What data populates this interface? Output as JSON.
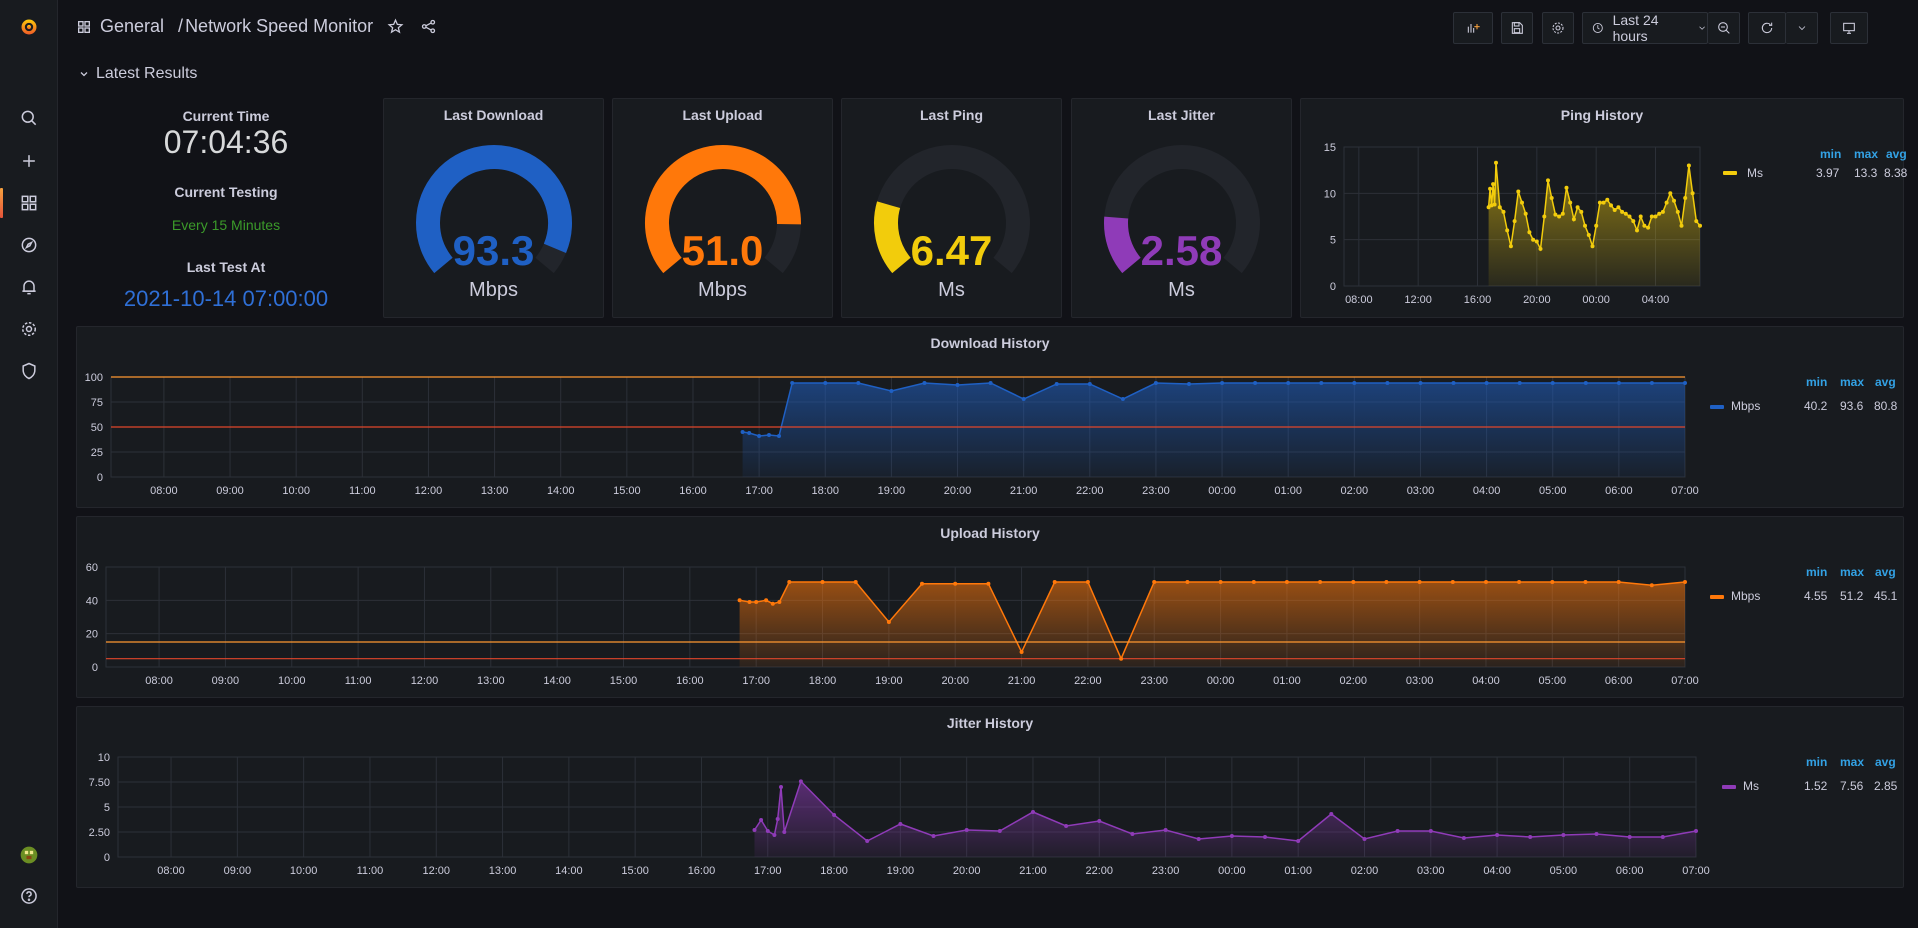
{
  "header": {
    "folder": "General",
    "separator": "/",
    "title": "Network Speed Monitor",
    "time_range": "Last 24 hours"
  },
  "row": {
    "title": "Latest Results"
  },
  "info": {
    "current_time_label": "Current Time",
    "current_time": "07:04:36",
    "current_testing_label": "Current Testing",
    "current_testing": "Every 15 Minutes",
    "last_test_label": "Last Test At",
    "last_test": "2021-10-14 07:00:00"
  },
  "gauges": [
    {
      "title": "Last Download",
      "value": "93.3",
      "value_num": 93.3,
      "max": 100,
      "unit": "Mbps",
      "color": "#1f60c4"
    },
    {
      "title": "Last Upload",
      "value": "51.0",
      "value_num": 51.0,
      "max": 60,
      "unit": "Mbps",
      "color": "#ff780a"
    },
    {
      "title": "Last Ping",
      "value": "6.47",
      "value_num": 6.47,
      "max": 30,
      "unit": "Ms",
      "color": "#f2cc0c"
    },
    {
      "title": "Last Jitter",
      "value": "2.58",
      "value_num": 2.58,
      "max": 15,
      "unit": "Ms",
      "color": "#8f3bb8"
    }
  ],
  "legend_headers": {
    "min": "min",
    "max": "max",
    "avg": "avg"
  },
  "chart_data": [
    {
      "type": "line",
      "title": "Ping History",
      "color": "#f2cc0c",
      "ylim": [
        0,
        15
      ],
      "yticks": [
        "15",
        "10",
        "5",
        "0"
      ],
      "yticks_num": [
        15,
        10,
        5,
        0
      ],
      "xlim": [
        7,
        31
      ],
      "xticks": [
        "08:00",
        "12:00",
        "16:00",
        "20:00",
        "00:00",
        "04:00"
      ],
      "xticks_num": [
        8,
        12,
        16,
        20,
        24,
        28
      ],
      "series": [
        {
          "name": "Ms",
          "min": "3.97",
          "max": "13.3",
          "avg": "8.38",
          "x": [
            16.75,
            16.85,
            16.95,
            17.05,
            17.15,
            17.25,
            17.5,
            17.75,
            18.0,
            18.25,
            18.5,
            18.75,
            19.0,
            19.25,
            19.5,
            19.75,
            20.0,
            20.25,
            20.5,
            20.75,
            21.0,
            21.25,
            21.5,
            21.75,
            22.0,
            22.25,
            22.5,
            22.75,
            23.0,
            23.25,
            23.5,
            23.75,
            24.0,
            24.25,
            24.5,
            24.75,
            25.0,
            25.25,
            25.5,
            25.75,
            26.0,
            26.25,
            26.5,
            26.75,
            27.0,
            27.25,
            27.5,
            27.75,
            28.0,
            28.25,
            28.5,
            28.75,
            29.0,
            29.25,
            29.5,
            29.75,
            30.0,
            30.25,
            30.5,
            30.75,
            31.0
          ],
          "values": [
            8.5,
            10.5,
            8.7,
            11.0,
            8.8,
            13.3,
            8.5,
            8.0,
            6.0,
            4.3,
            7.0,
            10.2,
            9.0,
            7.8,
            5.8,
            5.0,
            4.8,
            4.0,
            7.5,
            11.4,
            9.5,
            7.7,
            7.5,
            7.8,
            10.6,
            9.0,
            7.2,
            8.5,
            8.0,
            6.5,
            5.5,
            4.3,
            6.5,
            9.0,
            9.0,
            9.3,
            8.7,
            8.2,
            8.5,
            8.0,
            7.8,
            7.5,
            7.0,
            6.0,
            7.5,
            6.5,
            6.3,
            7.5,
            7.5,
            7.8,
            8.0,
            9.0,
            10.0,
            9.2,
            8.0,
            6.5,
            9.5,
            13.0,
            10.0,
            7.0,
            6.5
          ]
        }
      ]
    },
    {
      "type": "area",
      "title": "Download History",
      "color": "#1f60c4",
      "ylim": [
        0,
        100
      ],
      "yticks": [
        "100",
        "75",
        "50",
        "25",
        "0"
      ],
      "yticks_num": [
        100,
        75,
        50,
        25,
        0
      ],
      "xlim": [
        7.2,
        31.0
      ],
      "xticks": [
        "08:00",
        "09:00",
        "10:00",
        "11:00",
        "12:00",
        "13:00",
        "14:00",
        "15:00",
        "16:00",
        "17:00",
        "18:00",
        "19:00",
        "20:00",
        "21:00",
        "22:00",
        "23:00",
        "00:00",
        "01:00",
        "02:00",
        "03:00",
        "04:00",
        "05:00",
        "06:00",
        "07:00"
      ],
      "xticks_num": [
        8,
        9,
        10,
        11,
        12,
        13,
        14,
        15,
        16,
        17,
        18,
        19,
        20,
        21,
        22,
        23,
        24,
        25,
        26,
        27,
        28,
        29,
        30,
        31
      ],
      "thresholds": [
        {
          "value": 100,
          "color": "#ff9830"
        },
        {
          "value": 50,
          "color": "#e0462b"
        }
      ],
      "series": [
        {
          "name": "Mbps",
          "min": "40.2",
          "max": "93.6",
          "avg": "80.8",
          "x": [
            16.75,
            16.85,
            17.0,
            17.15,
            17.3,
            17.5,
            18.0,
            18.5,
            19.0,
            19.5,
            20.0,
            20.5,
            21.0,
            21.5,
            22.0,
            22.5,
            23.0,
            23.5,
            24.0,
            24.5,
            25.0,
            25.5,
            26.0,
            26.5,
            27.0,
            27.5,
            28.0,
            28.5,
            29.0,
            29.5,
            30.0,
            30.5,
            31.0
          ],
          "values": [
            45,
            44,
            41,
            42,
            41,
            94,
            94,
            94,
            86,
            94,
            92,
            94,
            78,
            93,
            93,
            78,
            94,
            93,
            94,
            94,
            94,
            94,
            94,
            94,
            94,
            94,
            94,
            94,
            94,
            94,
            94,
            94,
            94
          ]
        }
      ]
    },
    {
      "type": "area",
      "title": "Upload History",
      "color": "#ff780a",
      "ylim": [
        0,
        60
      ],
      "yticks": [
        "60",
        "40",
        "20",
        "0"
      ],
      "yticks_num": [
        60,
        40,
        20,
        0
      ],
      "xlim": [
        7.2,
        31.0
      ],
      "xticks": [
        "08:00",
        "09:00",
        "10:00",
        "11:00",
        "12:00",
        "13:00",
        "14:00",
        "15:00",
        "16:00",
        "17:00",
        "18:00",
        "19:00",
        "20:00",
        "21:00",
        "22:00",
        "23:00",
        "00:00",
        "01:00",
        "02:00",
        "03:00",
        "04:00",
        "05:00",
        "06:00",
        "07:00"
      ],
      "xticks_num": [
        8,
        9,
        10,
        11,
        12,
        13,
        14,
        15,
        16,
        17,
        18,
        19,
        20,
        21,
        22,
        23,
        24,
        25,
        26,
        27,
        28,
        29,
        30,
        31
      ],
      "thresholds": [
        {
          "value": 15,
          "color": "#ff9830"
        },
        {
          "value": 5,
          "color": "#e0462b"
        }
      ],
      "series": [
        {
          "name": "Mbps",
          "min": "4.55",
          "max": "51.2",
          "avg": "45.1",
          "x": [
            16.75,
            16.9,
            17.0,
            17.15,
            17.25,
            17.35,
            17.5,
            18.0,
            18.5,
            19.0,
            19.5,
            20.0,
            20.5,
            21.0,
            21.5,
            22.0,
            22.5,
            23.0,
            23.5,
            24.0,
            24.5,
            25.0,
            25.5,
            26.0,
            26.5,
            27.0,
            27.5,
            28.0,
            28.5,
            29.0,
            29.5,
            30.0,
            30.5,
            31.0
          ],
          "values": [
            40,
            39,
            39,
            40,
            38,
            39,
            51,
            51,
            51,
            27,
            50,
            50,
            50,
            9,
            51,
            51,
            5,
            51,
            51,
            51,
            51,
            51,
            51,
            51,
            51,
            51,
            51,
            51,
            51,
            51,
            51,
            51,
            49,
            51
          ]
        }
      ]
    },
    {
      "type": "area",
      "title": "Jitter History",
      "color": "#8f3bb8",
      "ylim": [
        0,
        10
      ],
      "yticks": [
        "10",
        "7.50",
        "5",
        "2.50",
        "0"
      ],
      "yticks_num": [
        10,
        7.5,
        5,
        2.5,
        0
      ],
      "xlim": [
        7.2,
        31.0
      ],
      "xticks": [
        "08:00",
        "09:00",
        "10:00",
        "11:00",
        "12:00",
        "13:00",
        "14:00",
        "15:00",
        "16:00",
        "17:00",
        "18:00",
        "19:00",
        "20:00",
        "21:00",
        "22:00",
        "23:00",
        "00:00",
        "01:00",
        "02:00",
        "03:00",
        "04:00",
        "05:00",
        "06:00",
        "07:00"
      ],
      "xticks_num": [
        8,
        9,
        10,
        11,
        12,
        13,
        14,
        15,
        16,
        17,
        18,
        19,
        20,
        21,
        22,
        23,
        24,
        25,
        26,
        27,
        28,
        29,
        30,
        31
      ],
      "series": [
        {
          "name": "Ms",
          "min": "1.52",
          "max": "7.56",
          "avg": "2.85",
          "x": [
            16.8,
            16.9,
            17.0,
            17.1,
            17.15,
            17.2,
            17.25,
            17.5,
            18.0,
            18.5,
            19.0,
            19.5,
            20.0,
            20.5,
            21.0,
            21.5,
            22.0,
            22.5,
            23.0,
            23.5,
            24.0,
            24.5,
            25.0,
            25.5,
            26.0,
            26.5,
            27.0,
            27.5,
            28.0,
            28.5,
            29.0,
            29.5,
            30.0,
            30.5,
            31.0
          ],
          "values": [
            2.7,
            3.7,
            2.6,
            2.2,
            3.8,
            7.0,
            2.5,
            7.56,
            4.2,
            1.6,
            3.3,
            2.1,
            2.7,
            2.6,
            4.5,
            3.1,
            3.6,
            2.3,
            2.7,
            1.8,
            2.1,
            2.0,
            1.6,
            4.3,
            1.8,
            2.6,
            2.6,
            1.9,
            2.2,
            2.0,
            2.2,
            2.3,
            2.0,
            2.0,
            2.6
          ]
        }
      ]
    }
  ]
}
